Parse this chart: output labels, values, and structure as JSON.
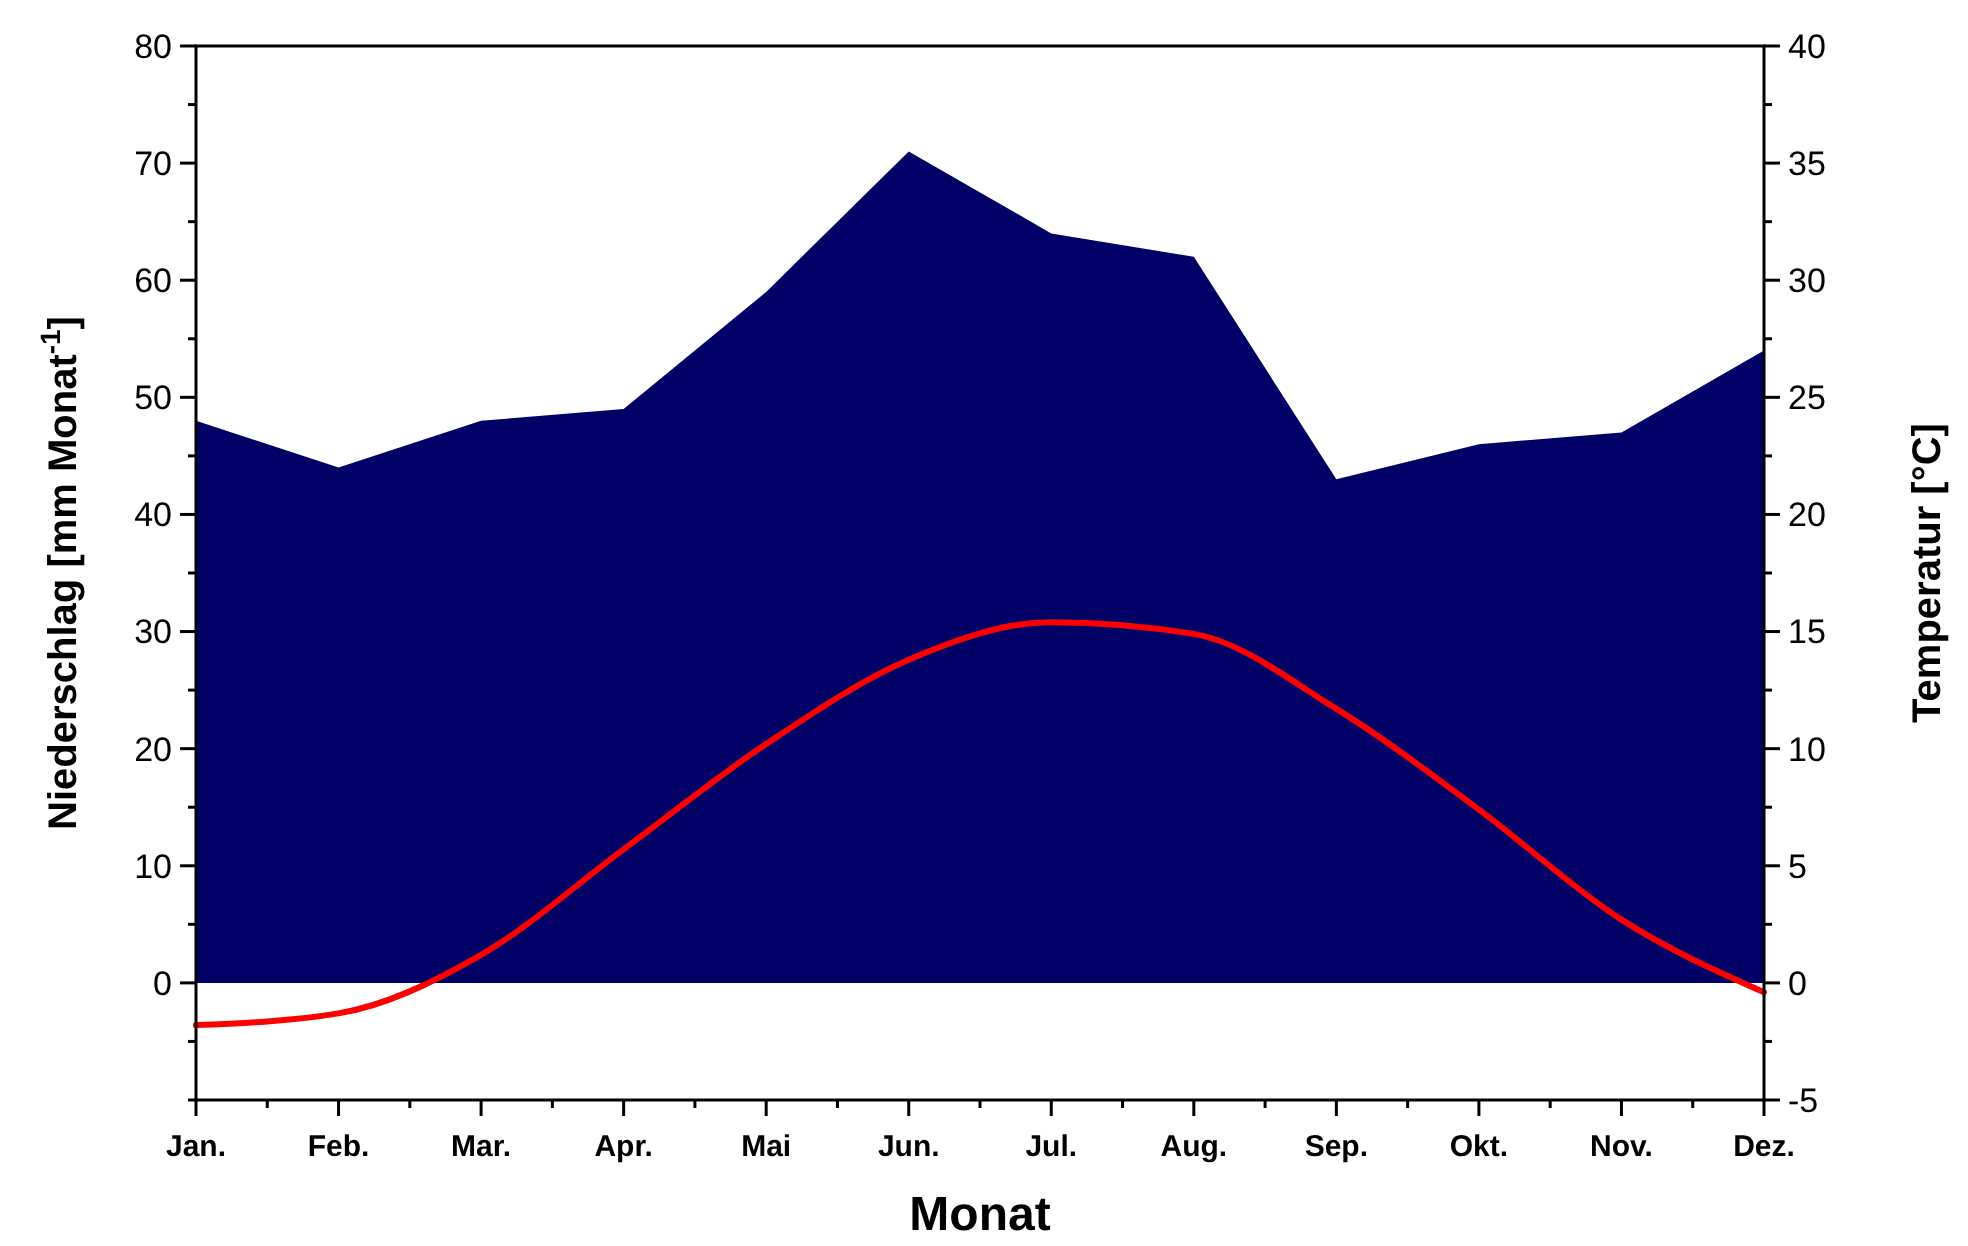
{
  "chart_data": {
    "type": "area",
    "xlabel": "Monat",
    "ylabel": "Niederschlag [mm Monat$^{-1}$]",
    "y2label": "Temperatur [°C]",
    "categories": [
      "Jan.",
      "Feb.",
      "Mar.",
      "Apr.",
      "Mai",
      "Jun.",
      "Jul.",
      "Aug.",
      "Sep.",
      "Okt.",
      "Nov.",
      "Dez."
    ],
    "series": [
      {
        "color": "#000066",
        "values": [
          48,
          44,
          48,
          49,
          59,
          71,
          64,
          62,
          43,
          46,
          47,
          54
        ]
      },
      {
        "type": "line",
        "axis": "y2",
        "color": "#ff0000",
        "values": [
          -1.8,
          -1.3,
          1.2,
          5.7,
          10.2,
          13.8,
          15.4,
          14.9,
          11.7,
          7.4,
          2.7,
          -0.4
        ]
      }
    ],
    "ylim": [
      -10,
      80
    ],
    "yticks": [
      {
        "value": -10,
        "label": null
      },
      {
        "value": -5,
        "label": null
      },
      0,
      {
        "value": 5,
        "label": null
      },
      10,
      {
        "value": 15,
        "label": null
      },
      20,
      {
        "value": 25,
        "label": null
      },
      30,
      {
        "value": 35,
        "label": null
      },
      40,
      {
        "value": 45,
        "label": null
      },
      50,
      {
        "value": 55,
        "label": null
      },
      60,
      {
        "value": 65,
        "label": null
      },
      70,
      {
        "value": 75,
        "label": null
      },
      80
    ],
    "y2lim": [
      -5,
      40
    ],
    "y2ticks": [
      -5,
      {
        "value": -2.5,
        "label": null
      },
      0,
      {
        "value": 2.5,
        "label": null
      },
      5,
      {
        "value": 7.5,
        "label": null
      },
      10,
      {
        "value": 12.5,
        "label": null
      },
      15,
      {
        "value": 17.5,
        "label": null
      },
      20,
      {
        "value": 22.5,
        "label": null
      },
      25,
      {
        "value": 27.5,
        "label": null
      },
      30,
      {
        "value": 32.5,
        "label": null
      },
      35,
      {
        "value": 37.5,
        "label": null
      },
      40
    ],
    "grid": false,
    "line_style": "solid",
    "marker": "none"
  }
}
